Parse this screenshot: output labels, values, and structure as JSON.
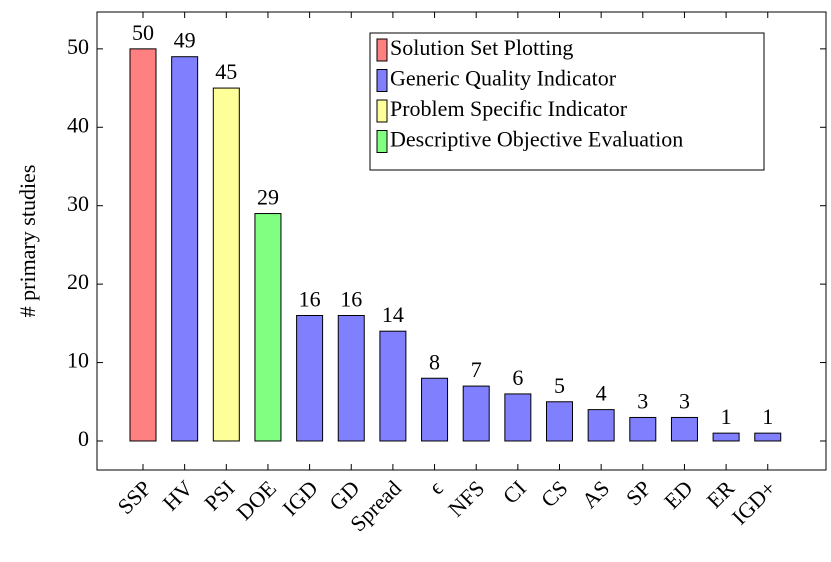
{
  "chart_data": {
    "type": "bar",
    "y_label": "# primary studies",
    "categories": [
      "SSP",
      "HV",
      "PSI",
      "DOE",
      "IGD",
      "GD",
      "Spread",
      "ϵ",
      "NFS",
      "CI",
      "CS",
      "AS",
      "SP",
      "ED",
      "ER",
      "IGD+"
    ],
    "values": [
      50,
      49,
      45,
      29,
      16,
      16,
      14,
      8,
      7,
      6,
      5,
      4,
      3,
      3,
      1,
      1
    ],
    "colors": [
      "#ff8080",
      "#8080ff",
      "#ffff99",
      "#80ff80",
      "#8080ff",
      "#8080ff",
      "#8080ff",
      "#8080ff",
      "#8080ff",
      "#8080ff",
      "#8080ff",
      "#8080ff",
      "#8080ff",
      "#8080ff",
      "#8080ff",
      "#8080ff"
    ],
    "legend": [
      {
        "name": "Solution Set Plotting",
        "color": "#ff8080"
      },
      {
        "name": "Generic Quality Indicator",
        "color": "#8080ff"
      },
      {
        "name": "Problem Specific Indicator",
        "color": "#ffff99"
      },
      {
        "name": "Descriptive Objective Evaluation",
        "color": "#80ff80"
      }
    ],
    "legend_position": "upper right",
    "ylim": [
      -3.7,
      54.7
    ],
    "yticks": [
      0,
      10,
      20,
      30,
      40,
      50
    ]
  }
}
